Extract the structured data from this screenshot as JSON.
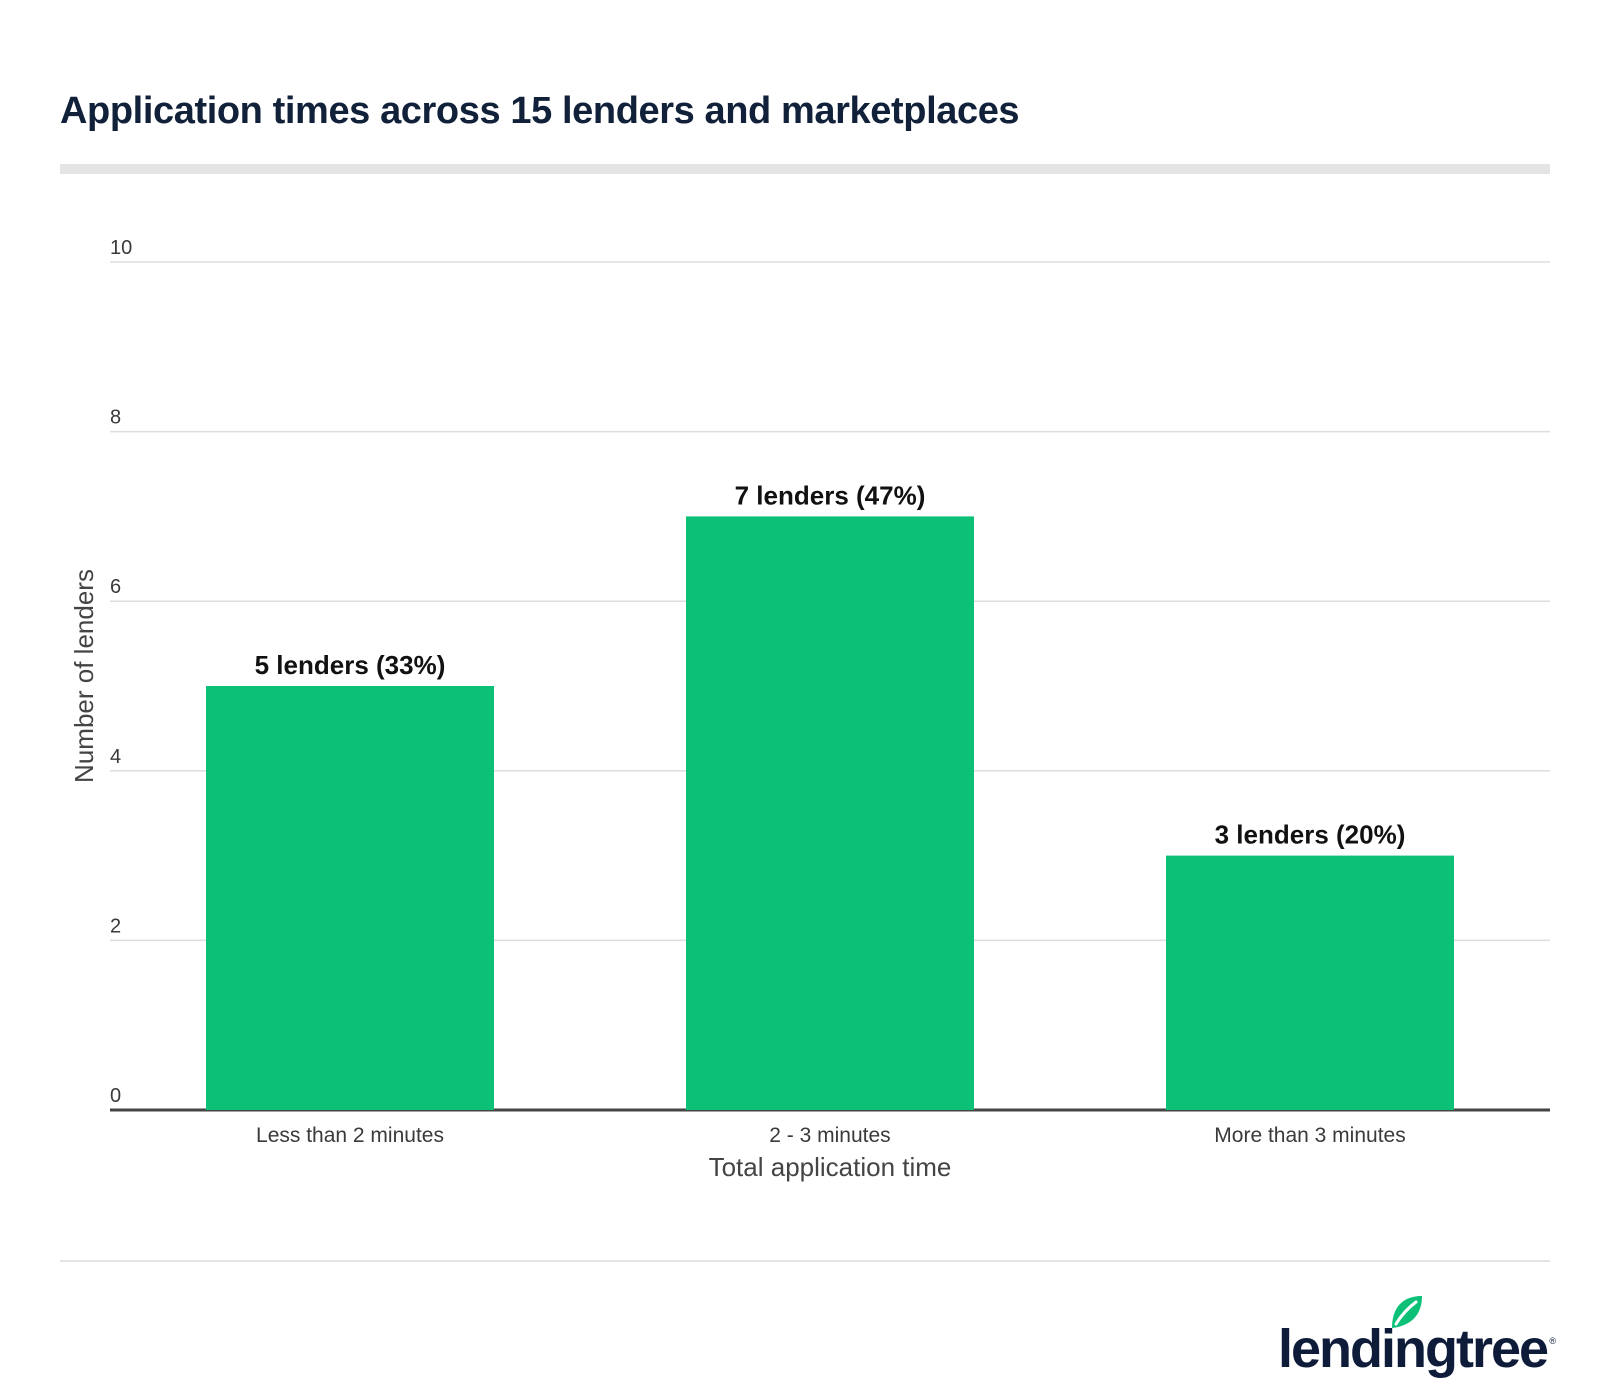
{
  "chart_data": {
    "type": "bar",
    "title": "Application times across 15 lenders and marketplaces",
    "xlabel": "Total application time",
    "ylabel": "Number of lenders",
    "categories": [
      "Less than 2 minutes",
      "2 - 3 minutes",
      "More than 3 minutes"
    ],
    "values": [
      5,
      7,
      3
    ],
    "data_labels": [
      "5 lenders (33%)",
      "7 lenders (47%)",
      "3 lenders (20%)"
    ],
    "ylim": [
      0,
      10
    ],
    "yticks": [
      0,
      2,
      4,
      6,
      8,
      10
    ],
    "grid": true,
    "legend": "none"
  },
  "colors": {
    "bar": "#0cc177",
    "title": "#11213a",
    "axis_text": "#3a3a3a",
    "grid": "#dddddd",
    "baseline": "#444444",
    "brand_text": "#0e1c3a",
    "brand_leaf": "#0cc177"
  },
  "brand": {
    "name": "lendingtree",
    "reg_mark": "®"
  }
}
